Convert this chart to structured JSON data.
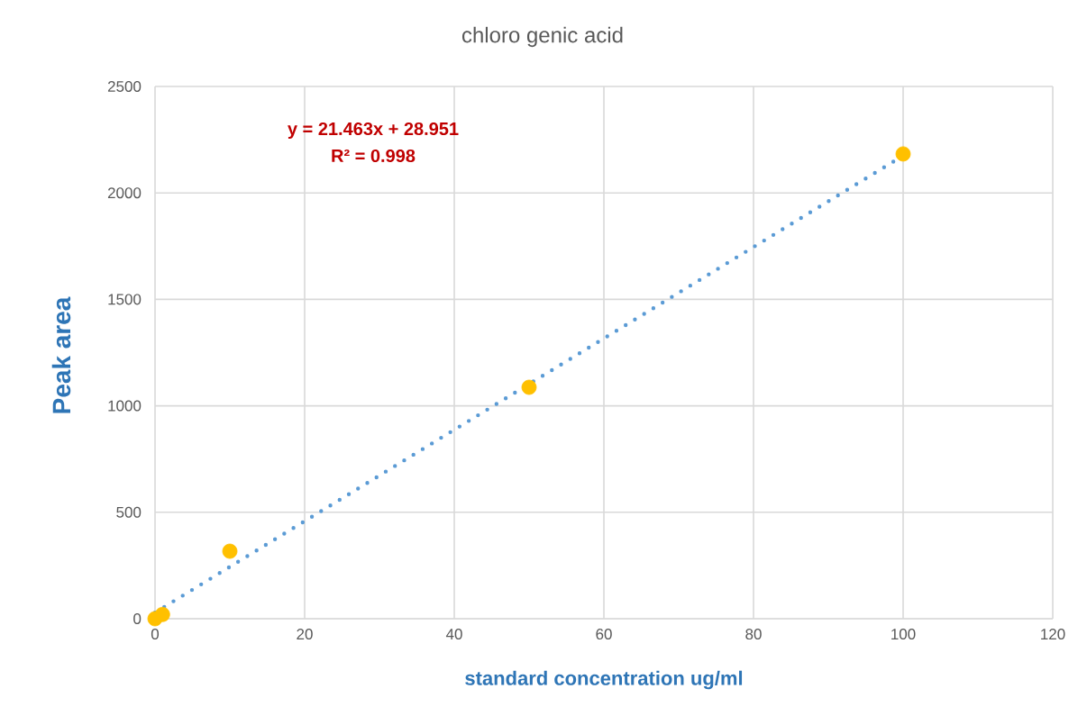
{
  "chart_data": {
    "type": "scatter",
    "title": "chloro genic acid",
    "xlabel": "standard concentration ug/ml",
    "ylabel": "Peak area",
    "xlim": [
      0,
      120
    ],
    "xticks": [
      0,
      20,
      40,
      60,
      80,
      100,
      120
    ],
    "ylim": [
      0,
      2500
    ],
    "yticks": [
      0,
      500,
      1000,
      1500,
      2000,
      2500
    ],
    "grid": true,
    "series": [
      {
        "color": "#ffc000",
        "marker": "circle",
        "x": [
          0,
          1,
          10,
          50,
          100
        ],
        "values": [
          0,
          20,
          317,
          1087,
          2183
        ]
      },
      {
        "type": "line",
        "color": "#5b9bd5",
        "marker": "none",
        "line_style": "dotted",
        "x": [
          0,
          100
        ],
        "values": [
          29,
          2175
        ]
      }
    ],
    "annotations": [
      "y = 21.463x + 28.951",
      "R² = 0.998"
    ]
  }
}
